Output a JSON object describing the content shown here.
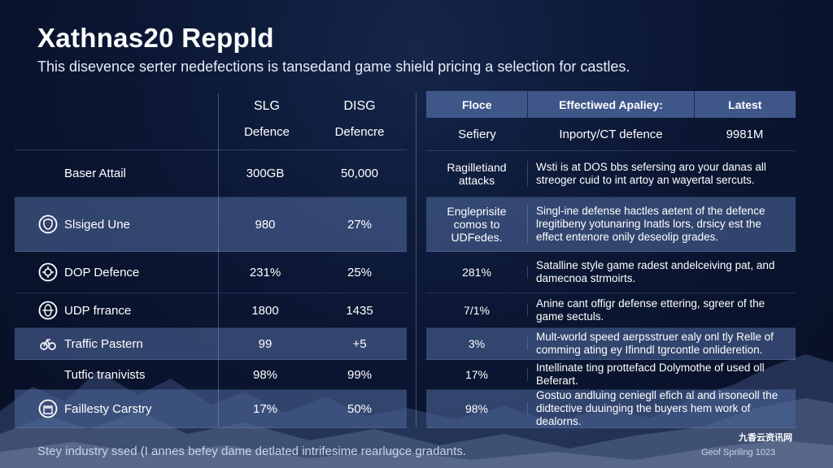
{
  "title": "Xathnas20 Reppld",
  "subtitle": "This disevence serter nedefections is tansedand game shield pricing a selection for castles.",
  "left_table": {
    "headers": [
      {
        "line1": "SLG",
        "line2": "Defence"
      },
      {
        "line1": "DISG",
        "line2": "Defencre"
      }
    ],
    "rows": [
      {
        "label": "Baser Attail",
        "icon": "",
        "values": [
          "300GB",
          "50,000"
        ]
      },
      {
        "label": "Slsiged Une",
        "icon": "shield-icon",
        "values": [
          "980",
          "27%"
        ]
      },
      {
        "label": "DOP Defence",
        "icon": "gear-shield-icon",
        "values": [
          "231%",
          "25%"
        ]
      },
      {
        "label": "UDP frrance",
        "icon": "globe-icon",
        "values": [
          "1800",
          "1435"
        ]
      },
      {
        "label": "Traffic Pastern",
        "icon": "traffic-icon",
        "values": [
          "99",
          "+5"
        ]
      },
      {
        "label": "Tutfic tranivists",
        "icon": "",
        "values": [
          "98%",
          "99%"
        ]
      },
      {
        "label": "Faillesty Carstry",
        "icon": "castle-icon",
        "values": [
          "17%",
          "50%"
        ]
      }
    ]
  },
  "right_table": {
    "headers": [
      "Floce",
      "Effectiwed Apaliey:",
      "Latest"
    ],
    "subrow": [
      "Sefiery",
      "Inporty/CT defence",
      "9981M"
    ],
    "rows": [
      {
        "col1": "Ragilletiand attacks",
        "col2": "Wsti is at DOS bbs sefersing aro your danas all streoger cuid to int artoy an wayertal sercuts."
      },
      {
        "col1": "Engleprisite comos to UDFedes.",
        "col2": "Singl-ine defense hactles aetent of the defence lregitibeny yotunaring Inatls lors, drsicy est the effect entenore onily deseolip grades."
      },
      {
        "col1": "281%",
        "col2": "Satalline style game radest andelceiving pat, and damecnoa strmoirts."
      },
      {
        "col1": "7/1%",
        "col2": "Anine cant offigr defense ettering, sgreer of the game sectuls."
      },
      {
        "col1": "3%",
        "col2": "Mult-world speed aerpsstruer ealy onl tly Relle of comming ating ey Ifinndl tgrcontle onlideretion."
      },
      {
        "col1": "17%",
        "col2": "Intellinate ting prottefacd Dolymothe of used oll Beferart."
      },
      {
        "col1": "98%",
        "col2": "Gostuo andluing ceniegll efich al and irsoneoll the didtective duuinging the buyers hem work of dealorns."
      }
    ]
  },
  "footer": {
    "left": "Stey industry ssed (I annes befey dame detlated intrifesime rearlugce gradants.",
    "right": "Geof Spriling 1023"
  },
  "watermark": "九香云资讯网"
}
